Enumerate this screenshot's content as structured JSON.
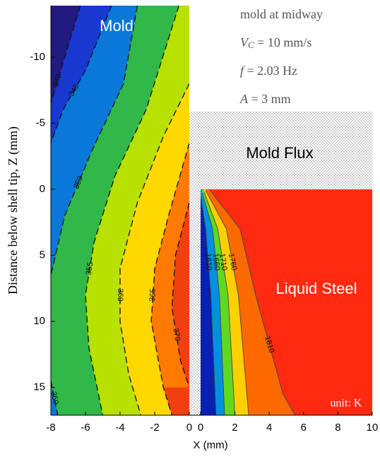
{
  "annotations": {
    "conditions": [
      {
        "text": "mold at midway"
      },
      {
        "symbol": "V",
        "subscript": "C",
        "text": " = 10 mm/s"
      },
      {
        "symbol": "f",
        "text": " = 2.03 Hz"
      },
      {
        "symbol": "A",
        "text": " = 3 mm"
      }
    ],
    "unit": "unit: K",
    "mold_flux": {
      "label": "Mold Flux",
      "z_range": [
        -5.9,
        0
      ]
    }
  },
  "chart_data": [
    {
      "type": "contour",
      "title": "Mold",
      "xlim": [
        -8,
        0
      ],
      "xticks": [
        -8,
        -6,
        -4,
        -2,
        0
      ],
      "ylim": [
        -13.9,
        17.1
      ],
      "yticks": [
        -10,
        -5,
        0,
        5,
        10,
        15
      ],
      "y_inverted": true,
      "xlabel": "X (mm)",
      "ylabel": "Distance below shell tip, Z (mm)",
      "line_style": "dashed",
      "background": "#f04010",
      "contours": [
        {
          "level": 370,
          "color": "#ff7a00",
          "x": [
            0,
            -0.8,
            -1,
            -0.5,
            0
          ],
          "z": [
            1,
            5,
            9,
            13,
            15
          ]
        },
        {
          "level": 365,
          "color": "#ffd800",
          "x": [
            0,
            -1.2,
            -2,
            -2.2,
            -1.5,
            -1
          ],
          "z": [
            -3.5,
            2,
            6,
            10,
            15,
            17.1
          ]
        },
        {
          "level": 360,
          "color": "#b8e000",
          "x": [
            0,
            -1.5,
            -3,
            -4,
            -4,
            -3.5,
            -2.8
          ],
          "z": [
            -8,
            -4,
            1,
            6,
            10,
            14,
            17.1
          ]
        },
        {
          "level": 355,
          "color": "#30b848",
          "x": [
            -0.6,
            -2.5,
            -4.3,
            -5.5,
            -6,
            -5.8,
            -5
          ],
          "z": [
            -13.9,
            -6,
            -1,
            4,
            8,
            12,
            17.1
          ]
        },
        {
          "level": 350,
          "color": "#0a78d8",
          "x": [
            -3,
            -3.8,
            -5.6,
            -7.2,
            -8,
            null,
            -8,
            -7.6
          ],
          "z": [
            -13.9,
            -8,
            -3,
            2,
            6.5,
            null,
            14.5,
            17.1
          ]
        },
        {
          "level": 345,
          "color": "#1838d0",
          "x": [
            -4.5,
            -6,
            -7.3,
            -8
          ],
          "z": [
            -13.9,
            -9,
            -6,
            -3.5
          ]
        },
        {
          "level": 340,
          "color": "#221a80",
          "x": [
            -6.3,
            -7.2,
            -8
          ],
          "z": [
            -13.9,
            -10,
            -6.5
          ]
        }
      ]
    },
    {
      "type": "contour",
      "title": "Liquid Steel",
      "xlim": [
        0,
        10
      ],
      "xticks": [
        0,
        2,
        4,
        6,
        8,
        10
      ],
      "ylim": [
        0,
        17.1
      ],
      "line_style": "solid",
      "background": "#ff2a10",
      "contours": [
        {
          "level": 1810,
          "color": "#ff6a00",
          "x": [
            0.5,
            2.3,
            3.2,
            4.8,
            5.5
          ],
          "z": [
            0,
            3,
            8,
            15.5,
            17.1
          ]
        },
        {
          "level": 1760,
          "color": "#ffd000",
          "x": [
            0.3,
            1.5,
            2.2,
            2.8
          ],
          "z": [
            0.1,
            3,
            8,
            17.1
          ]
        },
        {
          "level": 1710,
          "color": "#60d820",
          "x": [
            0.2,
            1,
            1.6,
            2
          ],
          "z": [
            0.2,
            3,
            8,
            17.1
          ]
        },
        {
          "level": 1660,
          "color": "#0090e0",
          "x": [
            0.1,
            0.7,
            1.1,
            1.4
          ],
          "z": [
            0.3,
            3,
            8,
            17.1
          ]
        },
        {
          "level": 1610,
          "color": "#0a20b0",
          "x": [
            0,
            0.3,
            0.6,
            0.9
          ],
          "z": [
            0.5,
            3,
            8,
            17.1
          ]
        }
      ]
    }
  ]
}
